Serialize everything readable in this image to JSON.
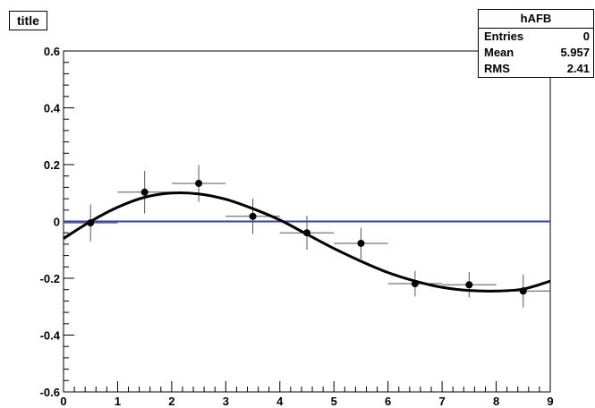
{
  "title_label": "title",
  "stats": {
    "name": "hAFB",
    "rows": [
      {
        "label": "Entries",
        "value": "0"
      },
      {
        "label": "Mean",
        "value": "5.957"
      },
      {
        "label": "RMS",
        "value": "2.41"
      }
    ]
  },
  "colors": {
    "zero_line": "#2b3fc6",
    "fit_curve": "#000000",
    "markers": "#000000",
    "axes": "#000000"
  },
  "chart_data": {
    "type": "scatter",
    "title": "title",
    "xlabel": "",
    "ylabel": "",
    "xlim": [
      0,
      9
    ],
    "ylim": [
      -0.6,
      0.6
    ],
    "grid": false,
    "x_ticks": [
      "0",
      "1",
      "2",
      "3",
      "4",
      "5",
      "6",
      "7",
      "8",
      "9"
    ],
    "y_ticks": [
      "-0.6",
      "-0.4",
      "-0.2",
      "0",
      "0.2",
      "0.4",
      "0.6"
    ],
    "points": [
      {
        "x": 0.5,
        "y": -0.005,
        "xerr": 0.5,
        "yerr": 0.065
      },
      {
        "x": 1.5,
        "y": 0.103,
        "xerr": 0.5,
        "yerr": 0.075
      },
      {
        "x": 2.5,
        "y": 0.134,
        "xerr": 0.5,
        "yerr": 0.065
      },
      {
        "x": 3.5,
        "y": 0.018,
        "xerr": 0.5,
        "yerr": 0.062
      },
      {
        "x": 4.5,
        "y": -0.04,
        "xerr": 0.5,
        "yerr": 0.06
      },
      {
        "x": 5.5,
        "y": -0.077,
        "xerr": 0.5,
        "yerr": 0.055
      },
      {
        "x": 6.5,
        "y": -0.219,
        "xerr": 0.5,
        "yerr": 0.045
      },
      {
        "x": 7.5,
        "y": -0.223,
        "xerr": 0.5,
        "yerr": 0.045
      },
      {
        "x": 8.5,
        "y": -0.245,
        "xerr": 0.5,
        "yerr": 0.058
      }
    ],
    "fit_curve": [
      [
        0.0,
        -0.06
      ],
      [
        0.5,
        0.0
      ],
      [
        1.0,
        0.05
      ],
      [
        1.5,
        0.085
      ],
      [
        2.0,
        0.1
      ],
      [
        2.5,
        0.097
      ],
      [
        3.0,
        0.078
      ],
      [
        3.5,
        0.045
      ],
      [
        4.0,
        0.005
      ],
      [
        4.5,
        -0.045
      ],
      [
        5.0,
        -0.095
      ],
      [
        5.5,
        -0.14
      ],
      [
        6.0,
        -0.18
      ],
      [
        6.5,
        -0.21
      ],
      [
        7.0,
        -0.232
      ],
      [
        7.5,
        -0.243
      ],
      [
        8.0,
        -0.245
      ],
      [
        8.5,
        -0.238
      ],
      [
        9.0,
        -0.21
      ]
    ],
    "reference_line": {
      "y": 0
    }
  }
}
